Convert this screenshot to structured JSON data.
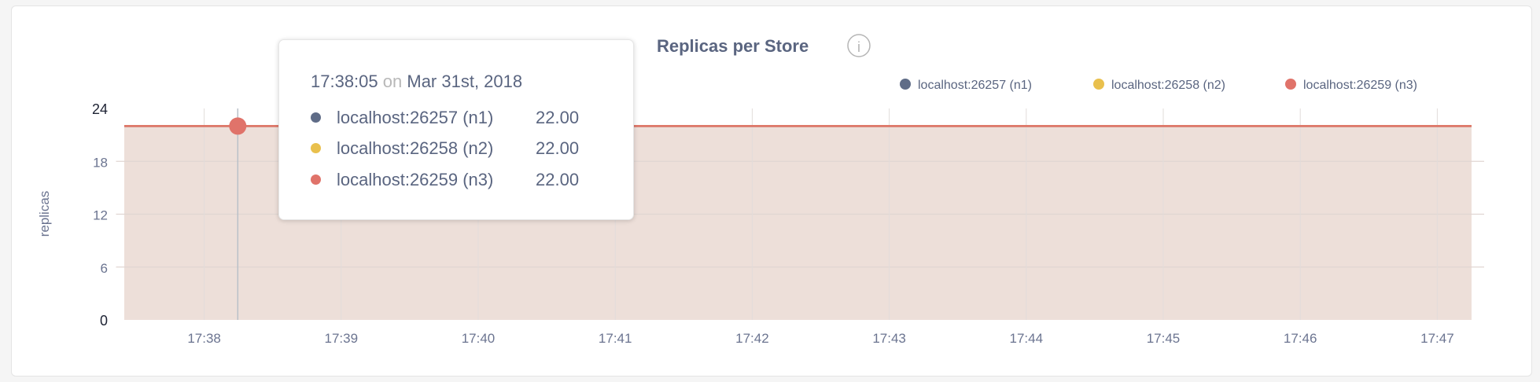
{
  "chart_data": {
    "type": "area",
    "title": "Replicas per Store",
    "ylabel": "replicas",
    "xlabel": "",
    "ylim": [
      0,
      24
    ],
    "yticks": [
      "0",
      "6",
      "12",
      "18",
      "24"
    ],
    "xticks": [
      "17:38",
      "17:39",
      "17:40",
      "17:41",
      "17:42",
      "17:43",
      "17:44",
      "17:45",
      "17:46",
      "17:47"
    ],
    "xlim": [
      "17:37:25",
      "17:47:20"
    ],
    "grid": true,
    "legend_position": "top-right",
    "series": [
      {
        "name": "localhost:26257 (n1)",
        "color": "#5f6c87",
        "x": [
          "17:37:25",
          "17:47:15"
        ],
        "values": [
          22,
          22
        ]
      },
      {
        "name": "localhost:26258 (n2)",
        "color": "#e9c04d",
        "x": [
          "17:37:25",
          "17:47:15"
        ],
        "values": [
          22,
          22
        ]
      },
      {
        "name": "localhost:26259 (n3)",
        "color": "#e0736a",
        "x": [
          "17:37:25",
          "17:47:15"
        ],
        "values": [
          22,
          22
        ]
      }
    ],
    "fill_color": "#eddfd9"
  },
  "info_icon": "info-icon",
  "tooltip": {
    "time": "17:38:05",
    "on": "on",
    "date": "Mar 31st, 2018",
    "rows": [
      {
        "name": "localhost:26257 (n1)",
        "value": "22.00",
        "color": "#5f6c87"
      },
      {
        "name": "localhost:26258 (n2)",
        "value": "22.00",
        "color": "#e9c04d"
      },
      {
        "name": "localhost:26259 (n3)",
        "value": "22.00",
        "color": "#e0736a"
      }
    ]
  }
}
